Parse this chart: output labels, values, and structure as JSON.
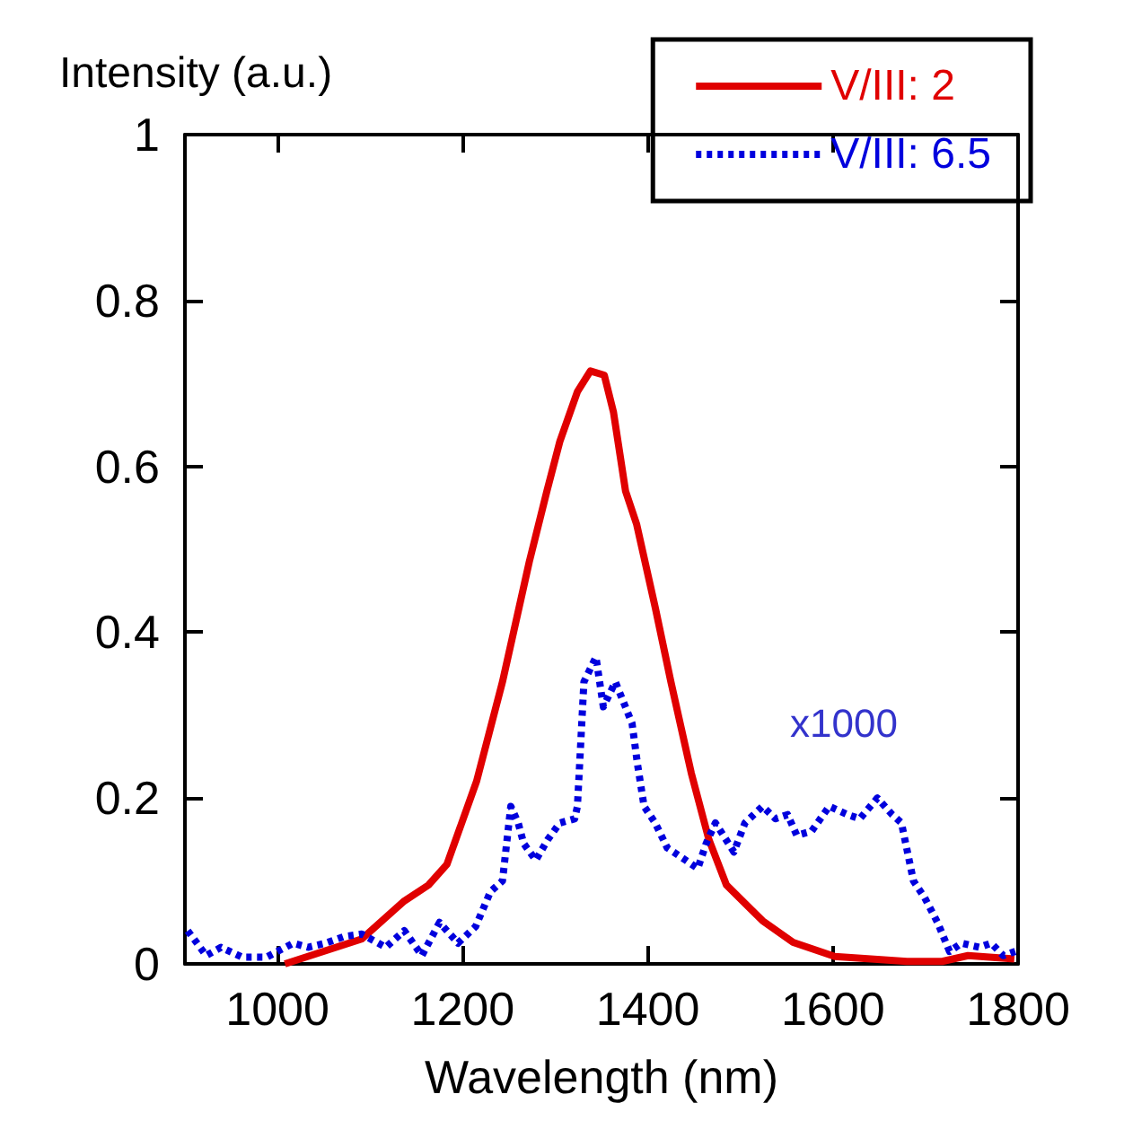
{
  "chart_data": {
    "type": "line",
    "xlabel": "Wavelength (nm)",
    "ylabel": "Intensity (a.u.)",
    "xlim": [
      900,
      1800
    ],
    "xticks": [
      1000,
      1200,
      1400,
      1600,
      1800
    ],
    "ylim": [
      0,
      1
    ],
    "yticks": [
      0,
      0.2,
      0.4,
      0.6,
      0.8,
      1
    ],
    "grid": false,
    "legend": "top right",
    "marker": "none",
    "annotations": [
      "x1000"
    ],
    "series": [
      {
        "name": "V/III: 2",
        "color": "#e00000",
        "line_style": "solid",
        "x": [
          1008,
          1091,
          1136,
          1163,
          1183,
          1215,
          1243,
          1272,
          1291,
          1305,
          1324,
          1338,
          1353,
          1363,
          1376,
          1388,
          1408,
          1425,
          1447,
          1466,
          1485,
          1524,
          1557,
          1602,
          1680,
          1718,
          1746,
          1796
        ],
        "values": [
          0,
          0.03,
          0.075,
          0.095,
          0.12,
          0.22,
          0.34,
          0.485,
          0.57,
          0.63,
          0.69,
          0.715,
          0.71,
          0.665,
          0.57,
          0.53,
          0.43,
          0.34,
          0.23,
          0.15,
          0.095,
          0.052,
          0.026,
          0.009,
          0.003,
          0.003,
          0.01,
          0.006
        ]
      },
      {
        "name": "V/III: 6.5",
        "color": "#0000dd",
        "line_style": "dotted",
        "x": [
          903,
          923,
          939,
          962,
          988,
          1017,
          1033,
          1052,
          1072,
          1091,
          1117,
          1137,
          1156,
          1175,
          1195,
          1214,
          1230,
          1243,
          1252,
          1260,
          1266,
          1279,
          1292,
          1305,
          1321,
          1324,
          1331,
          1344,
          1352,
          1365,
          1383,
          1389,
          1396,
          1408,
          1421,
          1441,
          1454,
          1463,
          1473,
          1493,
          1505,
          1524,
          1538,
          1551,
          1561,
          1577,
          1596,
          1616,
          1629,
          1648,
          1664,
          1674,
          1687,
          1699,
          1713,
          1726,
          1739,
          1758,
          1771,
          1784,
          1797
        ],
        "values": [
          0.04,
          0.01,
          0.02,
          0.008,
          0.008,
          0.025,
          0.02,
          0.025,
          0.033,
          0.036,
          0.02,
          0.04,
          0.01,
          0.05,
          0.025,
          0.045,
          0.087,
          0.1,
          0.19,
          0.17,
          0.145,
          0.125,
          0.15,
          0.17,
          0.175,
          0.19,
          0.34,
          0.37,
          0.31,
          0.34,
          0.29,
          0.24,
          0.19,
          0.17,
          0.14,
          0.125,
          0.115,
          0.145,
          0.17,
          0.135,
          0.17,
          0.19,
          0.175,
          0.18,
          0.155,
          0.16,
          0.19,
          0.18,
          0.175,
          0.2,
          0.18,
          0.17,
          0.1,
          0.08,
          0.05,
          0.015,
          0.025,
          0.02,
          0.025,
          0.01,
          0.015
        ]
      }
    ]
  }
}
